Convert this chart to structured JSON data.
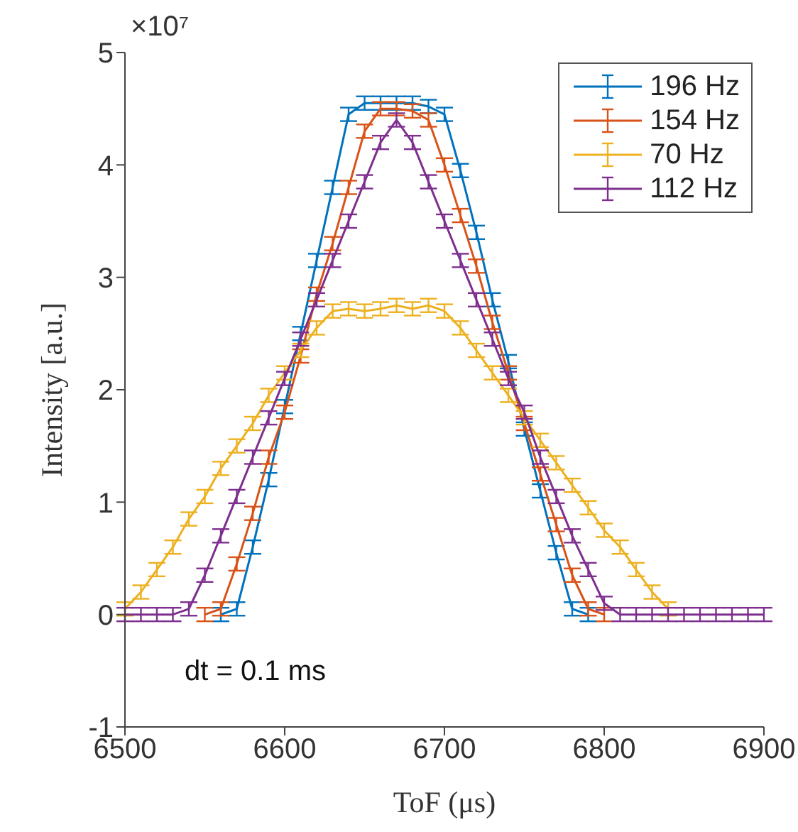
{
  "chart_data": {
    "type": "line",
    "xlabel": "ToF (μs)",
    "ylabel": "Intensity [a.u.]",
    "annotations": [
      "×10⁷",
      "dt = 0.1 ms"
    ],
    "x": [
      6500,
      6510,
      6520,
      6530,
      6540,
      6550,
      6560,
      6570,
      6580,
      6590,
      6600,
      6610,
      6620,
      6630,
      6640,
      6650,
      6660,
      6670,
      6680,
      6690,
      6700,
      6710,
      6720,
      6730,
      6740,
      6750,
      6760,
      6770,
      6780,
      6790,
      6800,
      6810,
      6820,
      6830,
      6840,
      6850,
      6860,
      6870,
      6880,
      6890,
      6900
    ],
    "series": [
      {
        "name": "196 Hz",
        "color": "#0072bd",
        "values": [
          null,
          null,
          null,
          null,
          null,
          null,
          0,
          0.05,
          0.6,
          1.2,
          1.85,
          2.5,
          3.15,
          3.8,
          4.45,
          4.55,
          4.55,
          4.55,
          4.55,
          4.52,
          4.45,
          3.95,
          3.4,
          2.8,
          2.25,
          1.65,
          1.1,
          0.55,
          0.05,
          0,
          null,
          null,
          null,
          null,
          null,
          null,
          null,
          null,
          null,
          null,
          null
        ],
        "errors": [
          null,
          null,
          null,
          null,
          null,
          null,
          0.06,
          0.06,
          0.06,
          0.06,
          0.06,
          0.06,
          0.06,
          0.06,
          0.06,
          0.06,
          0.06,
          0.06,
          0.06,
          0.06,
          0.06,
          0.06,
          0.06,
          0.06,
          0.06,
          0.06,
          0.06,
          0.06,
          0.06,
          0.06,
          null,
          null,
          null,
          null,
          null,
          null,
          null,
          null,
          null,
          null,
          null
        ]
      },
      {
        "name": "154 Hz",
        "color": "#d95319",
        "values": [
          null,
          null,
          null,
          null,
          null,
          0,
          0.05,
          0.45,
          0.9,
          1.4,
          1.8,
          2.3,
          2.85,
          3.3,
          3.8,
          4.3,
          4.5,
          4.5,
          4.48,
          4.4,
          4.0,
          3.55,
          3.1,
          2.6,
          2.15,
          1.7,
          1.25,
          0.8,
          0.35,
          0.05,
          0,
          null,
          null,
          null,
          null,
          null,
          null,
          null,
          null,
          null,
          null
        ],
        "errors": [
          null,
          null,
          null,
          null,
          null,
          0.06,
          0.06,
          0.06,
          0.06,
          0.06,
          0.06,
          0.06,
          0.06,
          0.06,
          0.06,
          0.06,
          0.06,
          0.06,
          0.06,
          0.06,
          0.06,
          0.06,
          0.06,
          0.06,
          0.06,
          0.06,
          0.06,
          0.06,
          0.06,
          0.06,
          0.06,
          null,
          null,
          null,
          null,
          null,
          null,
          null,
          null,
          null,
          null
        ]
      },
      {
        "name": "70 Hz",
        "color": "#edb120",
        "values": [
          0.05,
          0.2,
          0.4,
          0.6,
          0.85,
          1.05,
          1.3,
          1.5,
          1.7,
          1.95,
          2.15,
          2.35,
          2.55,
          2.7,
          2.72,
          2.7,
          2.72,
          2.75,
          2.72,
          2.75,
          2.7,
          2.55,
          2.35,
          2.15,
          1.95,
          1.75,
          1.55,
          1.35,
          1.15,
          0.95,
          0.75,
          0.6,
          0.4,
          0.2,
          0.05,
          null,
          null,
          null,
          null,
          null,
          null
        ],
        "errors": [
          0.06,
          0.06,
          0.06,
          0.06,
          0.06,
          0.06,
          0.06,
          0.06,
          0.06,
          0.06,
          0.06,
          0.06,
          0.06,
          0.06,
          0.06,
          0.06,
          0.06,
          0.06,
          0.06,
          0.06,
          0.06,
          0.06,
          0.06,
          0.06,
          0.06,
          0.06,
          0.06,
          0.06,
          0.06,
          0.06,
          0.06,
          0.06,
          0.06,
          0.06,
          0.06,
          null,
          null,
          null,
          null,
          null,
          null
        ]
      },
      {
        "name": "112 Hz",
        "color": "#7e2f8e",
        "values": [
          0,
          0,
          0,
          0,
          0.05,
          0.35,
          0.7,
          1.05,
          1.4,
          1.75,
          2.1,
          2.45,
          2.8,
          3.15,
          3.5,
          3.85,
          4.2,
          4.4,
          4.2,
          3.85,
          3.5,
          3.15,
          2.8,
          2.45,
          2.1,
          1.8,
          1.4,
          1.05,
          0.7,
          0.4,
          0.1,
          0,
          0,
          0,
          0,
          0,
          0,
          0,
          0,
          0,
          0
        ],
        "errors": [
          0.06,
          0.06,
          0.06,
          0.06,
          0.06,
          0.06,
          0.06,
          0.06,
          0.06,
          0.06,
          0.06,
          0.06,
          0.06,
          0.06,
          0.06,
          0.06,
          0.06,
          0.06,
          0.06,
          0.06,
          0.06,
          0.06,
          0.06,
          0.06,
          0.06,
          0.06,
          0.06,
          0.06,
          0.06,
          0.06,
          0.06,
          0.06,
          0.06,
          0.06,
          0.06,
          0.06,
          0.06,
          0.06,
          0.06,
          0.06,
          0.06
        ]
      }
    ],
    "xlim": [
      6500,
      6900
    ],
    "xticks": [
      6500,
      6600,
      6700,
      6800,
      6900
    ],
    "ylim": [
      -1,
      5
    ],
    "yticks": [
      -1,
      0,
      1,
      2,
      3,
      4,
      5
    ],
    "legend": "top right",
    "marker": "none",
    "line_style": "solid"
  }
}
